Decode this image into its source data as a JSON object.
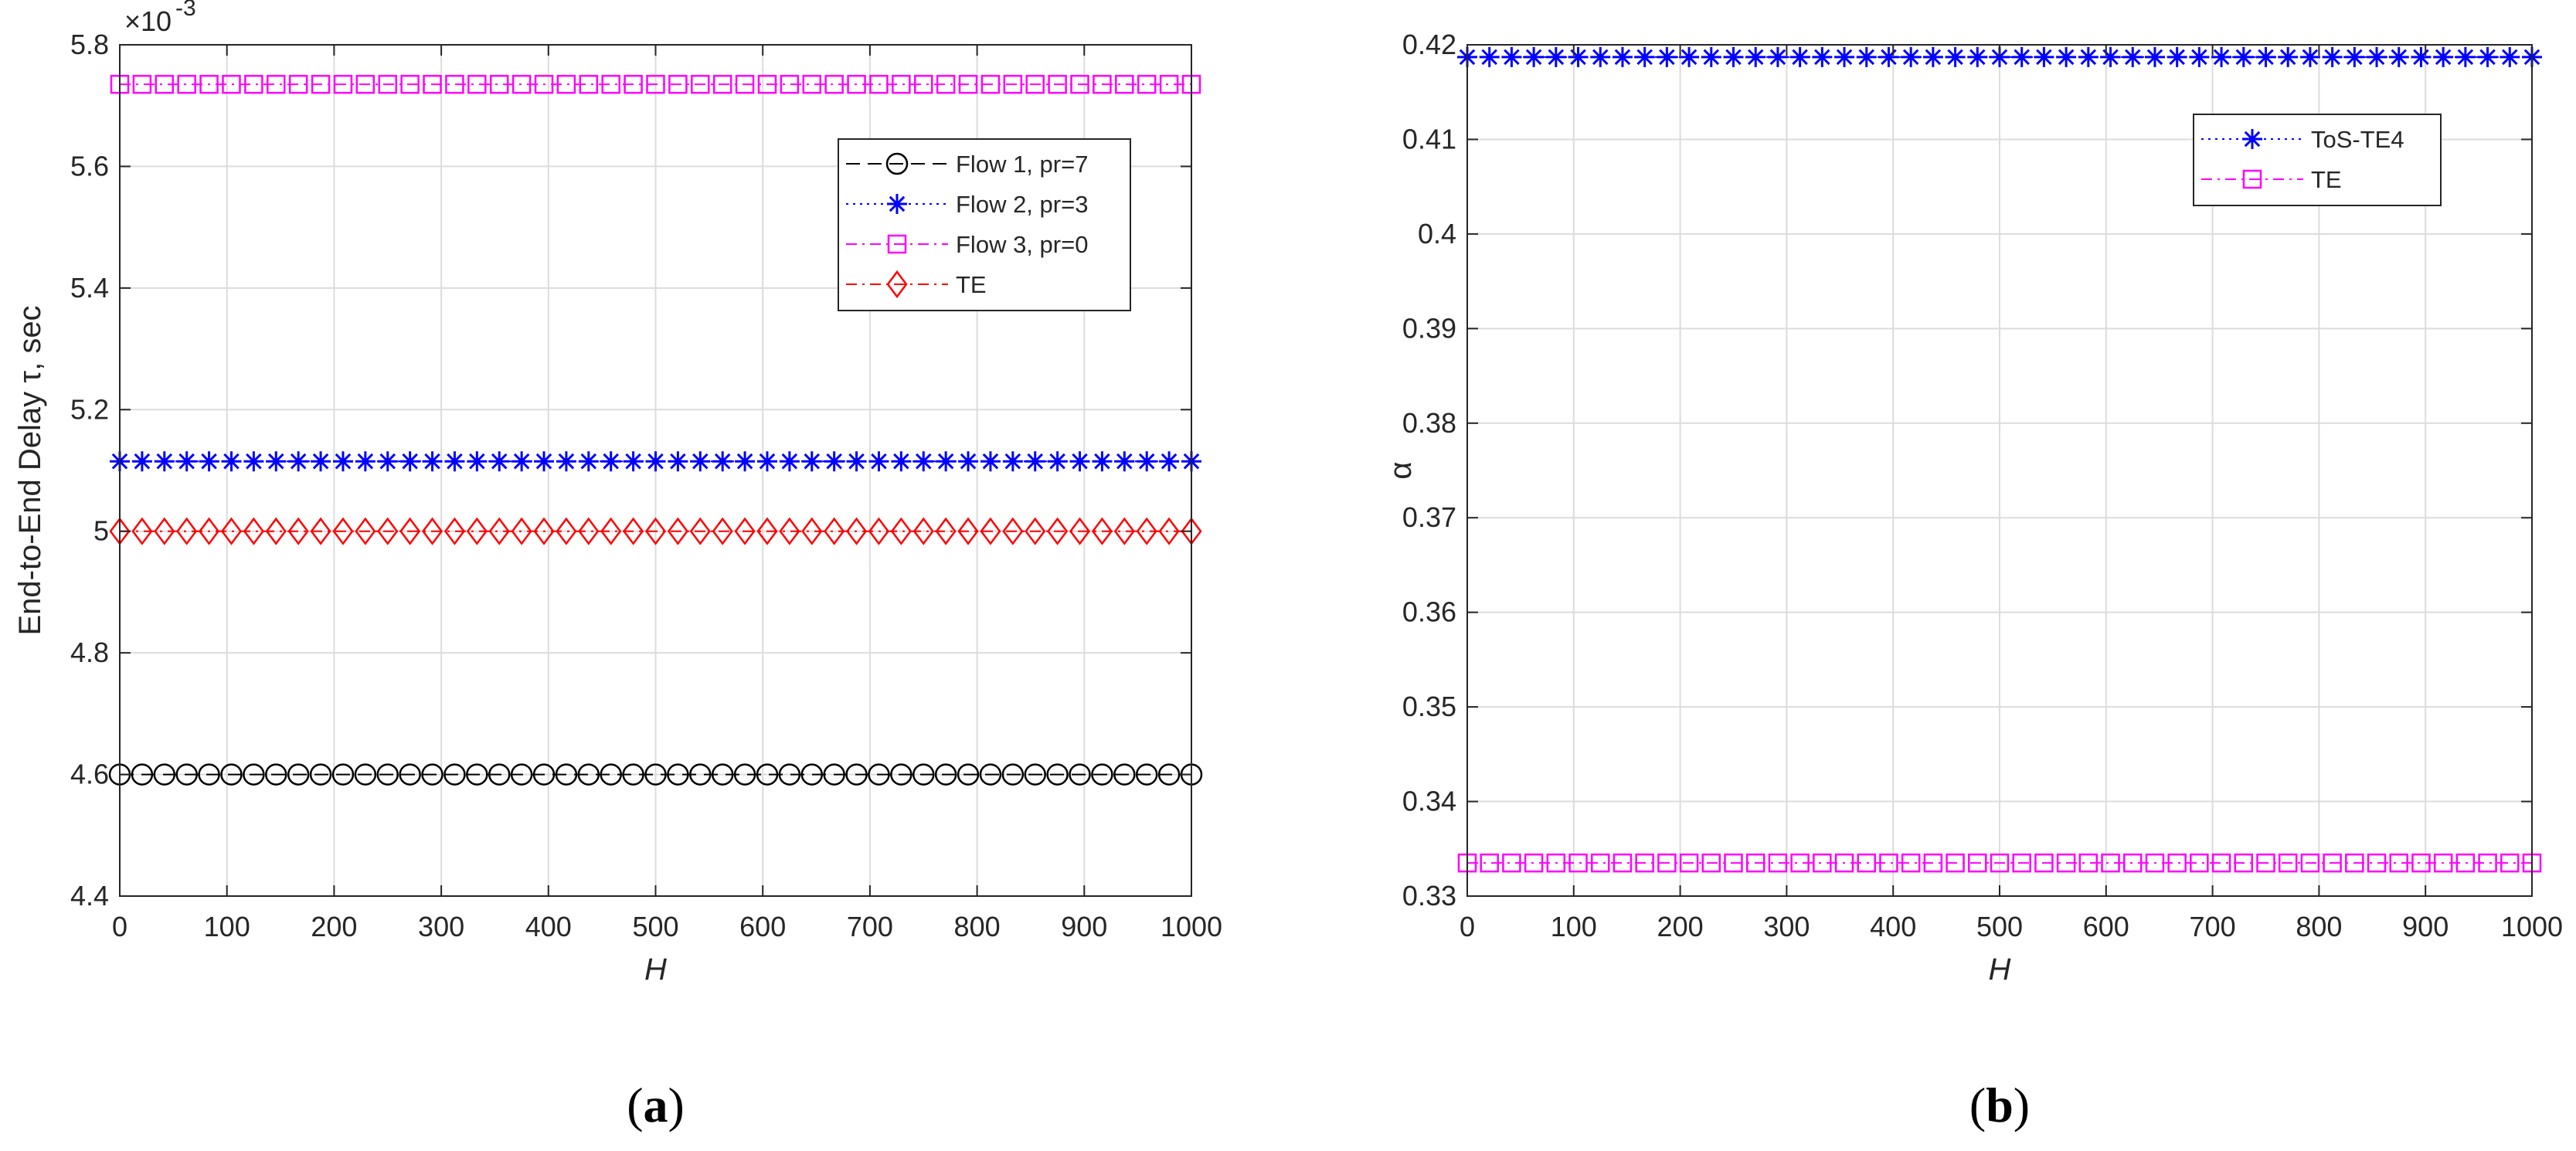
{
  "chart_data": [
    {
      "type": "line",
      "panel_label": "a",
      "xlabel": "H",
      "ylabel": "End-to-End Delay τ, sec",
      "exponent_label": "×10",
      "exponent_value": "-3",
      "xlim": [
        0,
        1000
      ],
      "ylim": [
        4.4,
        5.8
      ],
      "xticks": [
        0,
        100,
        200,
        300,
        400,
        500,
        600,
        700,
        800,
        900,
        1000
      ],
      "yticks": [
        4.4,
        4.6,
        4.8,
        5.0,
        5.2,
        5.4,
        5.6,
        5.8
      ],
      "ytick_labels": [
        "4.4",
        "4.6",
        "4.8",
        "5",
        "5.2",
        "5.4",
        "5.6",
        "5.8"
      ],
      "grid": true,
      "legend_position": "top-right",
      "marker_x": {
        "start": 0,
        "end": 1000,
        "count": 49
      },
      "series": [
        {
          "name": "Flow 1, pr=7",
          "value": 4.6,
          "color": "#000000",
          "marker": "circle",
          "dash": "long-dash"
        },
        {
          "name": "Flow 2, pr=3",
          "value": 5.115,
          "color": "#0000ff",
          "marker": "asterisk",
          "dash": "dotted"
        },
        {
          "name": "Flow 3, pr=0",
          "value": 5.735,
          "color": "#ff00ff",
          "marker": "square",
          "dash": "dash-dot"
        },
        {
          "name": "TE",
          "value": 5.0,
          "color": "#ff0000",
          "marker": "diamond",
          "dash": "dash-dot"
        }
      ]
    },
    {
      "type": "line",
      "panel_label": "b",
      "xlabel": "H",
      "ylabel": "α",
      "xlim": [
        0,
        1000
      ],
      "ylim": [
        0.33,
        0.42
      ],
      "xticks": [
        0,
        100,
        200,
        300,
        400,
        500,
        600,
        700,
        800,
        900,
        1000
      ],
      "yticks": [
        0.33,
        0.34,
        0.35,
        0.36,
        0.37,
        0.38,
        0.39,
        0.4,
        0.41,
        0.42
      ],
      "ytick_labels": [
        "0.33",
        "0.34",
        "0.35",
        "0.36",
        "0.37",
        "0.38",
        "0.39",
        "0.4",
        "0.41",
        "0.42"
      ],
      "grid": true,
      "legend_position": "top-right",
      "marker_x": {
        "start": 0,
        "end": 1000,
        "count": 49
      },
      "series": [
        {
          "name": "ToS-TE4",
          "value": 0.4187,
          "color": "#0000ff",
          "marker": "asterisk",
          "dash": "dotted"
        },
        {
          "name": "TE",
          "value": 0.3335,
          "color": "#ff00ff",
          "marker": "square",
          "dash": "dash-dot"
        }
      ]
    }
  ]
}
